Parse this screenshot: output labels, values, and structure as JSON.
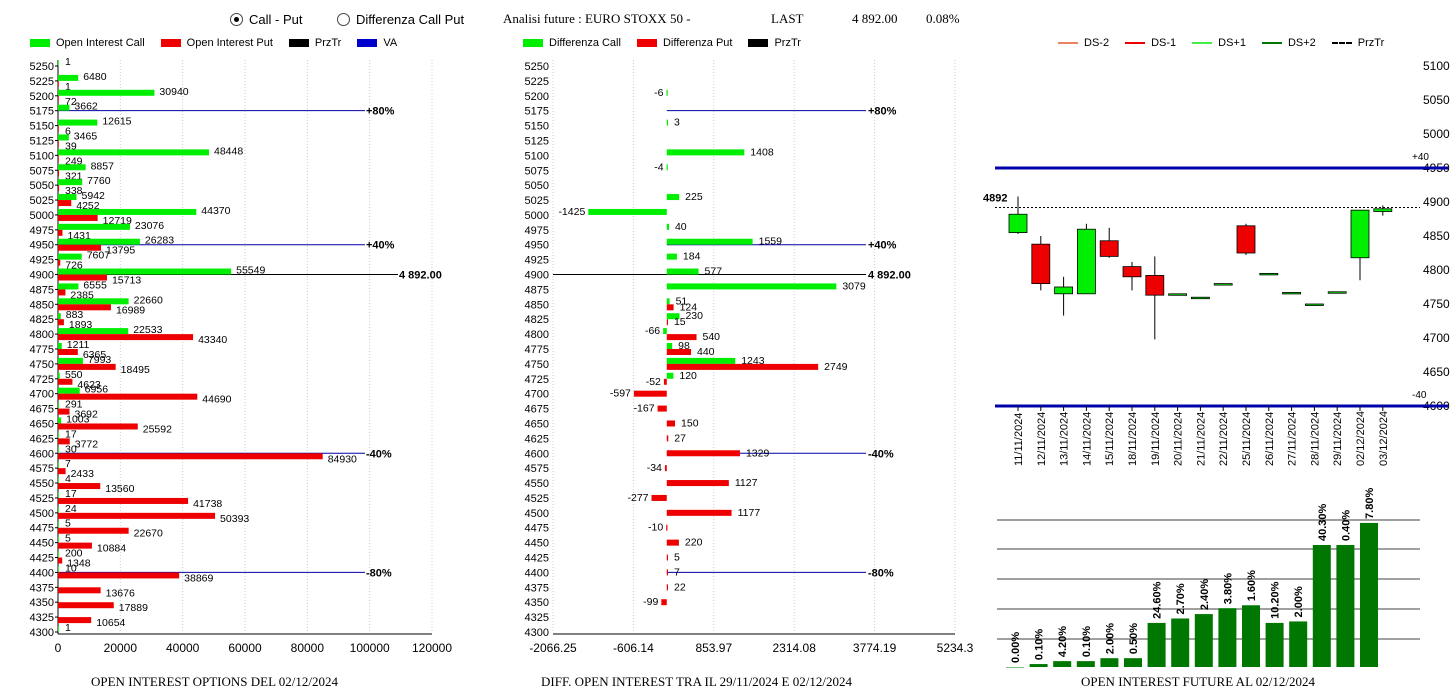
{
  "header": {
    "radio_call_put": "Call - Put",
    "radio_diff": "Differenza Call Put",
    "title": "Analisi future : EURO STOXX 50 -",
    "last_label": "LAST",
    "last_value": "4 892.00",
    "change": "0.08%"
  },
  "footers": {
    "left": "OPEN INTEREST OPTIONS DEL 02/12/2024",
    "middle": "DIFF. OPEN INTEREST TRA IL 29/11/2024 E 02/12/2024",
    "right": "OPEN INTEREST FUTURE AL 02/12/2024"
  },
  "chart_data": [
    {
      "type": "bar",
      "orientation": "horizontal",
      "legend": [
        {
          "label": "Open Interest Call",
          "color": "#00ee00"
        },
        {
          "label": "Open Interest Put",
          "color": "#ee0000"
        },
        {
          "label": "PrzTr",
          "color": "#000000"
        },
        {
          "label": "VA",
          "color": "#0000cc"
        }
      ],
      "strikes": [
        5250,
        5225,
        5200,
        5175,
        5150,
        5125,
        5100,
        5075,
        5050,
        5025,
        5000,
        4975,
        4950,
        4925,
        4900,
        4875,
        4850,
        4825,
        4800,
        4775,
        4750,
        4725,
        4700,
        4675,
        4650,
        4625,
        4600,
        4575,
        4550,
        4525,
        4500,
        4475,
        4450,
        4425,
        4400,
        4375,
        4350,
        4325,
        4300
      ],
      "calls": [
        1,
        6480,
        30940,
        3662,
        12615,
        3465,
        48448,
        8857,
        7760,
        5942,
        44370,
        23076,
        26283,
        7607,
        55549,
        6555,
        22660,
        883,
        22533,
        1211,
        7993,
        550,
        6956,
        291,
        1003,
        17,
        30,
        7,
        4,
        17,
        24,
        5,
        5,
        200,
        10,
        null,
        null,
        null,
        1
      ],
      "puts": [
        null,
        1,
        72,
        null,
        6,
        39,
        249,
        321,
        338,
        4252,
        12719,
        1431,
        13795,
        726,
        15713,
        2385,
        16989,
        1893,
        43340,
        6365,
        18495,
        4623,
        44690,
        3692,
        25592,
        3772,
        84930,
        2433,
        13560,
        41738,
        50393,
        22670,
        10884,
        1348,
        38869,
        13676,
        17889,
        10654,
        null
      ],
      "xticks": [
        "0",
        "20000",
        "40000",
        "60000",
        "80000",
        "100000",
        "120000"
      ],
      "xlim": [
        0,
        120000
      ],
      "reference_lines": [
        {
          "strike": 5175,
          "label": "+80%"
        },
        {
          "strike": 4950,
          "label": "+40%"
        },
        {
          "strike": 4900,
          "label": "4 892.00"
        },
        {
          "strike": 4600,
          "label": "-40%"
        },
        {
          "strike": 4400,
          "label": "-80%"
        }
      ]
    },
    {
      "type": "bar",
      "orientation": "horizontal",
      "legend": [
        {
          "label": "Differenza Call",
          "color": "#00ee00"
        },
        {
          "label": "Differenza Put",
          "color": "#ee0000"
        },
        {
          "label": "PrzTr",
          "color": "#000000"
        }
      ],
      "strikes": [
        5250,
        5225,
        5200,
        5175,
        5150,
        5125,
        5100,
        5075,
        5050,
        5025,
        5000,
        4975,
        4950,
        4925,
        4900,
        4875,
        4850,
        4825,
        4800,
        4775,
        4750,
        4725,
        4700,
        4675,
        4650,
        4625,
        4600,
        4575,
        4550,
        4525,
        4500,
        4475,
        4450,
        4425,
        4400,
        4375,
        4350,
        4325,
        4300
      ],
      "diff_call": [
        null,
        null,
        -6,
        null,
        3,
        null,
        1408,
        -4,
        null,
        225,
        -1425,
        40,
        1559,
        184,
        577,
        3079,
        51,
        230,
        -66,
        98,
        1243,
        120,
        null,
        null,
        null,
        null,
        null,
        null,
        null,
        null,
        null,
        null,
        null,
        null,
        null,
        null,
        null,
        null,
        null
      ],
      "diff_put": [
        null,
        null,
        null,
        null,
        null,
        null,
        null,
        null,
        null,
        null,
        null,
        null,
        null,
        null,
        null,
        null,
        124,
        15,
        540,
        440,
        2749,
        -52,
        -597,
        -167,
        150,
        27,
        1329,
        -34,
        1127,
        -277,
        1177,
        -10,
        220,
        5,
        7,
        22,
        -99,
        null,
        null
      ],
      "xticks": [
        "-2066.25",
        "-606.14",
        "853.97",
        "2314.08",
        "3774.19",
        "5234.3"
      ],
      "xlim": [
        -2066.25,
        5234.3
      ],
      "reference_lines": [
        {
          "strike": 5175,
          "label": "+80%"
        },
        {
          "strike": 4950,
          "label": "+40%"
        },
        {
          "strike": 4900,
          "label": "4 892.00"
        },
        {
          "strike": 4600,
          "label": "-40%"
        },
        {
          "strike": 4400,
          "label": "-80%"
        }
      ]
    },
    {
      "type": "candlestick",
      "legend": [
        {
          "label": "DS-2",
          "color": "#f08060"
        },
        {
          "label": "DS-1",
          "color": "#ee0000"
        },
        {
          "label": "DS+1",
          "color": "#44ee44"
        },
        {
          "label": "DS+2",
          "color": "#007700"
        },
        {
          "label": "PrzTr",
          "color": "#000000"
        }
      ],
      "dates": [
        "11/11/2024",
        "12/11/2024",
        "13/11/2024",
        "14/11/2024",
        "15/11/2024",
        "18/11/2024",
        "19/11/2024",
        "20/11/2024",
        "21/11/2024",
        "22/11/2024",
        "25/11/2024",
        "26/11/2024",
        "27/11/2024",
        "28/11/2024",
        "29/11/2024",
        "02/12/2024",
        "03/12/2024"
      ],
      "candles": [
        {
          "o": 4855,
          "h": 4908,
          "l": 4853,
          "c": 4882
        },
        {
          "o": 4838,
          "h": 4850,
          "l": 4770,
          "c": 4780
        },
        {
          "o": 4765,
          "h": 4790,
          "l": 4733,
          "c": 4775
        },
        {
          "o": 4765,
          "h": 4868,
          "l": 4765,
          "c": 4860
        },
        {
          "o": 4843,
          "h": 4862,
          "l": 4818,
          "c": 4820
        },
        {
          "o": 4805,
          "h": 4812,
          "l": 4770,
          "c": 4790
        },
        {
          "o": 4792,
          "h": 4820,
          "l": 4698,
          "c": 4763
        },
        {
          "o": 4765,
          "h": 4765,
          "l": 4765,
          "c": 4765
        },
        {
          "o": 4760,
          "h": 4760,
          "l": 4760,
          "c": 4760
        },
        {
          "o": 4780,
          "h": 4780,
          "l": 4780,
          "c": 4780
        },
        {
          "o": 4865,
          "h": 4868,
          "l": 4822,
          "c": 4825
        },
        {
          "o": 4795,
          "h": 4795,
          "l": 4795,
          "c": 4795
        },
        {
          "o": 4767,
          "h": 4767,
          "l": 4767,
          "c": 4767
        },
        {
          "o": 4750,
          "h": 4750,
          "l": 4750,
          "c": 4750
        },
        {
          "o": 4768,
          "h": 4768,
          "l": 4768,
          "c": 4768
        },
        {
          "o": 4818,
          "h": 4888,
          "l": 4785,
          "c": 4888
        },
        {
          "o": 4886,
          "h": 4895,
          "l": 4880,
          "c": 4890
        }
      ],
      "ylim": [
        4600,
        5100
      ],
      "yticks": [
        "5100",
        "5050",
        "5000",
        "4950",
        "4900",
        "4850",
        "4800",
        "4750",
        "4700",
        "4650",
        "4600"
      ],
      "lines": [
        {
          "value": 4950,
          "label": "+40",
          "color": "#0000aa"
        },
        {
          "value": 4600,
          "label": "-40",
          "color": "#0000aa"
        },
        {
          "value": 4892,
          "label": "4892",
          "color": "#000000",
          "dashed": true
        }
      ]
    },
    {
      "type": "bar",
      "title": "",
      "values": [
        0.0,
        0.1,
        4.2,
        0.1,
        2.0,
        0.5,
        24.6,
        2.7,
        2.4,
        3.8,
        1.6,
        10.2,
        2.0,
        40.3,
        0.4,
        7.8
      ],
      "labels": [
        "0.00%",
        "0.10%",
        "4.20%",
        "0.10%",
        "2.00%",
        "0.50%",
        "24.60%",
        "2.70%",
        "2.40%",
        "3.80%",
        "1.60%",
        "10.20%",
        "2.00%",
        "40.30%",
        "0.40%",
        "7.80%"
      ],
      "bar_levels": [
        0,
        2,
        4,
        4,
        6,
        6,
        30,
        33,
        36,
        40,
        42,
        30,
        31,
        83,
        83,
        98
      ],
      "color": "#007700"
    }
  ]
}
